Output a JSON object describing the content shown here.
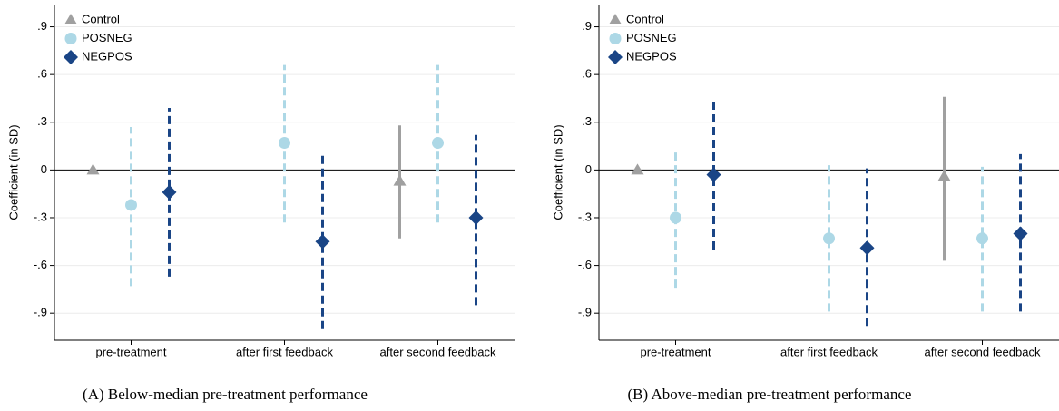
{
  "chart_data": [
    {
      "type": "errorbar",
      "caption": "(A) Below-median pre-treatment performance",
      "y_label": "Coefficient (in SD)",
      "categories": [
        "pre-treatment",
        "after first feedback",
        "after second feedback"
      ],
      "ylim": [
        -1.07,
        1.04
      ],
      "yticks": [
        {
          "value": -0.9,
          "label": "-.9"
        },
        {
          "value": -0.6,
          "label": "-.6"
        },
        {
          "value": -0.3,
          "label": "-.3"
        },
        0,
        {
          "value": 0.3,
          "label": ".3"
        },
        {
          "value": 0.6,
          "label": ".6"
        },
        {
          "value": 0.9,
          "label": ".9"
        }
      ],
      "grid": true,
      "zero_line": true,
      "legend": "top-left",
      "series": [
        {
          "name": "Control",
          "color": "#a0a0a0",
          "marker": "triangle",
          "dashed": false,
          "values": [
            0,
            null,
            -0.07
          ],
          "lower": [
            null,
            null,
            -0.43
          ],
          "upper": [
            null,
            null,
            0.28
          ]
        },
        {
          "name": "POSNEG",
          "color": "#add8e6",
          "marker": "circle",
          "dashed": true,
          "values": [
            -0.22,
            0.17,
            0.17
          ],
          "lower": [
            -0.73,
            -0.33,
            -0.33
          ],
          "upper": [
            0.27,
            0.66,
            0.66
          ]
        },
        {
          "name": "NEGPOS",
          "color": "#1a4586",
          "marker": "diamond",
          "dashed": true,
          "values": [
            -0.14,
            -0.45,
            -0.3
          ],
          "lower": [
            -0.67,
            -1.0,
            -0.85
          ],
          "upper": [
            0.39,
            0.1,
            0.22
          ]
        }
      ]
    },
    {
      "type": "errorbar",
      "caption": "(B) Above-median pre-treatment performance",
      "y_label": "Coefficient (in SD)",
      "categories": [
        "pre-treatment",
        "after first feedback",
        "after second feedback"
      ],
      "ylim": [
        -1.07,
        1.04
      ],
      "yticks": [
        {
          "value": -0.9,
          "label": "-.9"
        },
        {
          "value": -0.6,
          "label": "-.6"
        },
        {
          "value": -0.3,
          "label": "-.3"
        },
        0,
        {
          "value": 0.3,
          "label": ".3"
        },
        {
          "value": 0.6,
          "label": ".6"
        },
        {
          "value": 0.9,
          "label": ".9"
        }
      ],
      "grid": true,
      "zero_line": true,
      "legend": "top-left",
      "series": [
        {
          "name": "Control",
          "color": "#a0a0a0",
          "marker": "triangle",
          "dashed": false,
          "values": [
            0,
            null,
            -0.04
          ],
          "lower": [
            null,
            null,
            -0.57
          ],
          "upper": [
            null,
            null,
            0.46
          ]
        },
        {
          "name": "POSNEG",
          "color": "#add8e6",
          "marker": "circle",
          "dashed": true,
          "values": [
            -0.3,
            -0.43,
            -0.43
          ],
          "lower": [
            -0.74,
            -0.89,
            -0.89
          ],
          "upper": [
            0.11,
            0.03,
            0.02
          ]
        },
        {
          "name": "NEGPOS",
          "color": "#1a4586",
          "marker": "diamond",
          "dashed": true,
          "values": [
            -0.03,
            -0.49,
            -0.4
          ],
          "lower": [
            -0.5,
            -0.98,
            -0.89
          ],
          "upper": [
            0.43,
            0.01,
            0.1
          ]
        }
      ]
    }
  ]
}
